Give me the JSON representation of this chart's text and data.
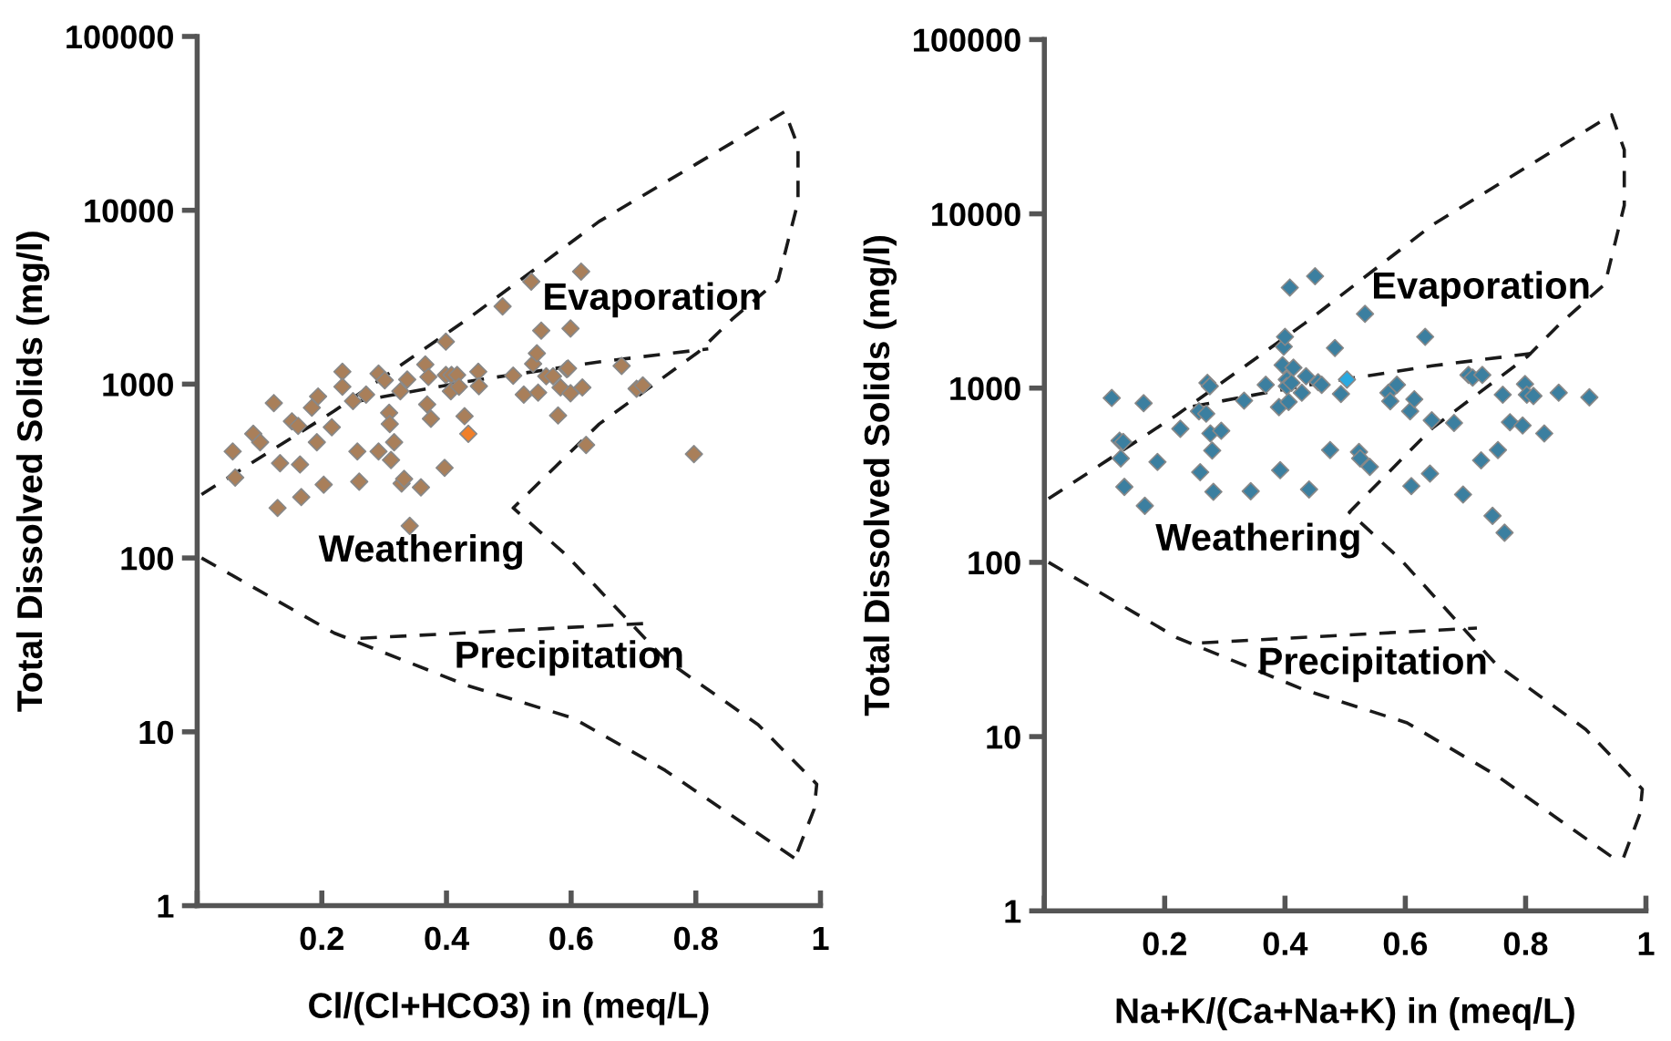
{
  "chart_data": [
    {
      "type": "scatter",
      "xlabel": "Cl/(Cl+HCO3) in (meq/L)",
      "ylabel": "Total Dissolved Solids (mg/l)",
      "log": "y",
      "xlim": [
        0,
        1
      ],
      "ylim": [
        1,
        100000
      ],
      "xticks": [
        {
          "value": 0,
          "label": null
        },
        0.2,
        0.4,
        0.6,
        0.8,
        1
      ],
      "yticks": [
        1,
        10,
        100,
        1000,
        10000,
        100000
      ],
      "grid": false,
      "marker": "diamond",
      "annotations": [
        "Evaporation",
        "Weathering",
        "Precipitation"
      ],
      "series": [
        {
          "color": "#a97f5a",
          "x": [
            0.057,
            0.061,
            0.09,
            0.101,
            0.123,
            0.133,
            0.152,
            0.162,
            0.165,
            0.167,
            0.184,
            0.194,
            0.192,
            0.203,
            0.129,
            0.216,
            0.233,
            0.233,
            0.25,
            0.257,
            0.26,
            0.271,
            0.291,
            0.291,
            0.301,
            0.308,
            0.309,
            0.311,
            0.316,
            0.326,
            0.328,
            0.332,
            0.337,
            0.341,
            0.359,
            0.366,
            0.369,
            0.371,
            0.375,
            0.397,
            0.399,
            0.399,
            0.408,
            0.417,
            0.407,
            0.42,
            0.429,
            0.451,
            0.452,
            0.49,
            0.507,
            0.524,
            0.536,
            0.539,
            0.545,
            0.552,
            0.547,
            0.56,
            0.571,
            0.579,
            0.583,
            0.593,
            0.595,
            0.599,
            0.599,
            0.616,
            0.618,
            0.624,
            0.681,
            0.705,
            0.715,
            0.797
          ],
          "values": [
            410,
            290,
            518,
            463,
            778,
            351,
            611,
            575,
            345,
            224,
            732,
            849,
            463,
            264,
            194,
            565,
            1179,
            966,
            799,
            410,
            275,
            871,
            1149,
            410,
            1053,
            684,
            590,
            366,
            463,
            910,
            268,
            285,
            1062,
            153,
            255,
            1297,
            764,
            1100,
            632,
            330,
            1755,
            1129,
            1129,
            1129,
            910,
            966,
            654,
            1179,
            974,
            2800,
            1119,
            871,
            3890,
            1308,
            1503,
            2031,
            894,
            1110,
            1110,
            660,
            957,
            1220,
            1231,
            886,
            2090,
            4440,
            957,
            447,
            1274,
            941,
            983,
            396
          ]
        },
        {
          "color": "#f07f2a",
          "x": [
            0.435
          ],
          "values": [
            518
          ]
        },
        {
          "type": "line",
          "color": "#1a1a1a",
          "line_style": "dashed",
          "marker": "none",
          "x": [
            0.007,
            0.22,
            0.433,
            0.645,
            0.943,
            0.964,
            0.964,
            0.932,
            0.858,
            0.804,
            0.645,
            0.507,
            0.592,
            0.751,
            0.9,
            0.994,
            0.99,
            0.959
          ],
          "values": [
            232,
            701,
            2355,
            8630,
            37000,
            23300,
            11190,
            3960,
            2355,
            1528,
            590,
            194,
            104,
            26,
            11,
            5.0,
            3.6,
            1.87
          ]
        },
        {
          "type": "line",
          "color": "#1a1a1a",
          "line_style": "dashed",
          "marker": "none",
          "x": [
            0.007,
            0.22,
            0.433,
            0.603,
            0.751,
            0.959
          ],
          "values": [
            100,
            37,
            18.5,
            12,
            6.0,
            1.87
          ]
        },
        {
          "type": "line",
          "color": "#1a1a1a",
          "line_style": "dashed",
          "marker": "none",
          "x": [
            0.247,
            0.433,
            0.645,
            0.82
          ],
          "values": [
            785,
            1035,
            1343,
            1596
          ]
        },
        {
          "type": "line",
          "color": "#1a1a1a",
          "line_style": "dashed",
          "marker": "none",
          "x": [
            0.262,
            0.719
          ],
          "values": [
            34.5,
            42
          ]
        }
      ]
    },
    {
      "type": "scatter",
      "xlabel": "Na+K/(Ca+Na+K) in (meq/L)",
      "ylabel": "Total Dissolved Solids (mg/l)",
      "log": "y",
      "xlim": [
        0,
        1
      ],
      "ylim": [
        1,
        100000
      ],
      "xticks": [
        {
          "value": 0,
          "label": null
        },
        0.2,
        0.4,
        0.6,
        0.8,
        1
      ],
      "yticks": [
        1,
        10,
        100,
        1000,
        10000,
        100000
      ],
      "grid": false,
      "marker": "diamond",
      "annotations": [
        "Evaporation",
        "Weathering",
        "Precipitation"
      ],
      "series": [
        {
          "color": "#3b7fa0",
          "x": [
            0.112,
            0.165,
            0.125,
            0.131,
            0.127,
            0.133,
            0.167,
            0.188,
            0.226,
            0.257,
            0.269,
            0.271,
            0.275,
            0.276,
            0.279,
            0.294,
            0.259,
            0.281,
            0.332,
            0.343,
            0.368,
            0.39,
            0.392,
            0.396,
            0.398,
            0.4,
            0.403,
            0.403,
            0.406,
            0.408,
            0.411,
            0.414,
            0.428,
            0.435,
            0.44,
            0.45,
            0.455,
            0.461,
            0.475,
            0.483,
            0.493,
            0.523,
            0.525,
            0.533,
            0.541,
            0.572,
            0.575,
            0.586,
            0.608,
            0.615,
            0.633,
            0.641,
            0.644,
            0.681,
            0.696,
            0.705,
            0.712,
            0.726,
            0.728,
            0.745,
            0.754,
            0.762,
            0.765,
            0.774,
            0.795,
            0.799,
            0.802,
            0.813,
            0.831,
            0.855,
            0.906,
            0.61
          ],
          "values": [
            878,
            819,
            499,
            491,
            395,
            271,
            211,
            377,
            584,
            737,
            713,
            1072,
            1026,
            549,
            438,
            569,
            329,
            254,
            847,
            256,
            1044,
            778,
            338,
            1355,
            1729,
            1968,
            1119,
            1026,
            833,
            3774,
            1072,
            1310,
            941,
            1169,
            262,
            4385,
            1081,
            1044,
            441,
            1698,
            925,
            430,
            395,
            2667,
            353,
            941,
            841,
            1044,
            737,
            863,
            1968,
            323,
            653,
            631,
            245,
            1190,
            1149,
            385,
            1190,
            185,
            441,
            916,
            148,
            637,
            610,
            1054,
            916,
            901,
            549,
            941,
            885,
            274
          ]
        },
        {
          "color": "#29a9e0",
          "x": [
            0.503
          ],
          "values": [
            1119
          ]
        },
        {
          "type": "line",
          "color": "#1a1a1a",
          "line_style": "dashed",
          "marker": "none",
          "x": [
            0.007,
            0.22,
            0.433,
            0.645,
            0.943,
            0.964,
            0.964,
            0.932,
            0.858,
            0.804,
            0.645,
            0.507,
            0.592,
            0.751,
            0.9,
            0.994,
            0.99,
            0.959
          ],
          "values": [
            232,
            701,
            2355,
            8630,
            37000,
            23300,
            11190,
            3960,
            2355,
            1528,
            590,
            194,
            104,
            26,
            11,
            5.0,
            3.6,
            1.87
          ]
        },
        {
          "type": "line",
          "color": "#1a1a1a",
          "line_style": "dashed",
          "marker": "none",
          "x": [
            0.007,
            0.22,
            0.433,
            0.603,
            0.751,
            0.959
          ],
          "values": [
            100,
            37,
            18.5,
            12,
            6.0,
            1.87
          ]
        },
        {
          "type": "line",
          "color": "#1a1a1a",
          "line_style": "dashed",
          "marker": "none",
          "x": [
            0.247,
            0.433,
            0.645,
            0.82
          ],
          "values": [
            785,
            1035,
            1343,
            1596
          ]
        },
        {
          "type": "line",
          "color": "#1a1a1a",
          "line_style": "dashed",
          "marker": "none",
          "x": [
            0.262,
            0.719
          ],
          "values": [
            34.5,
            42
          ]
        }
      ]
    }
  ]
}
